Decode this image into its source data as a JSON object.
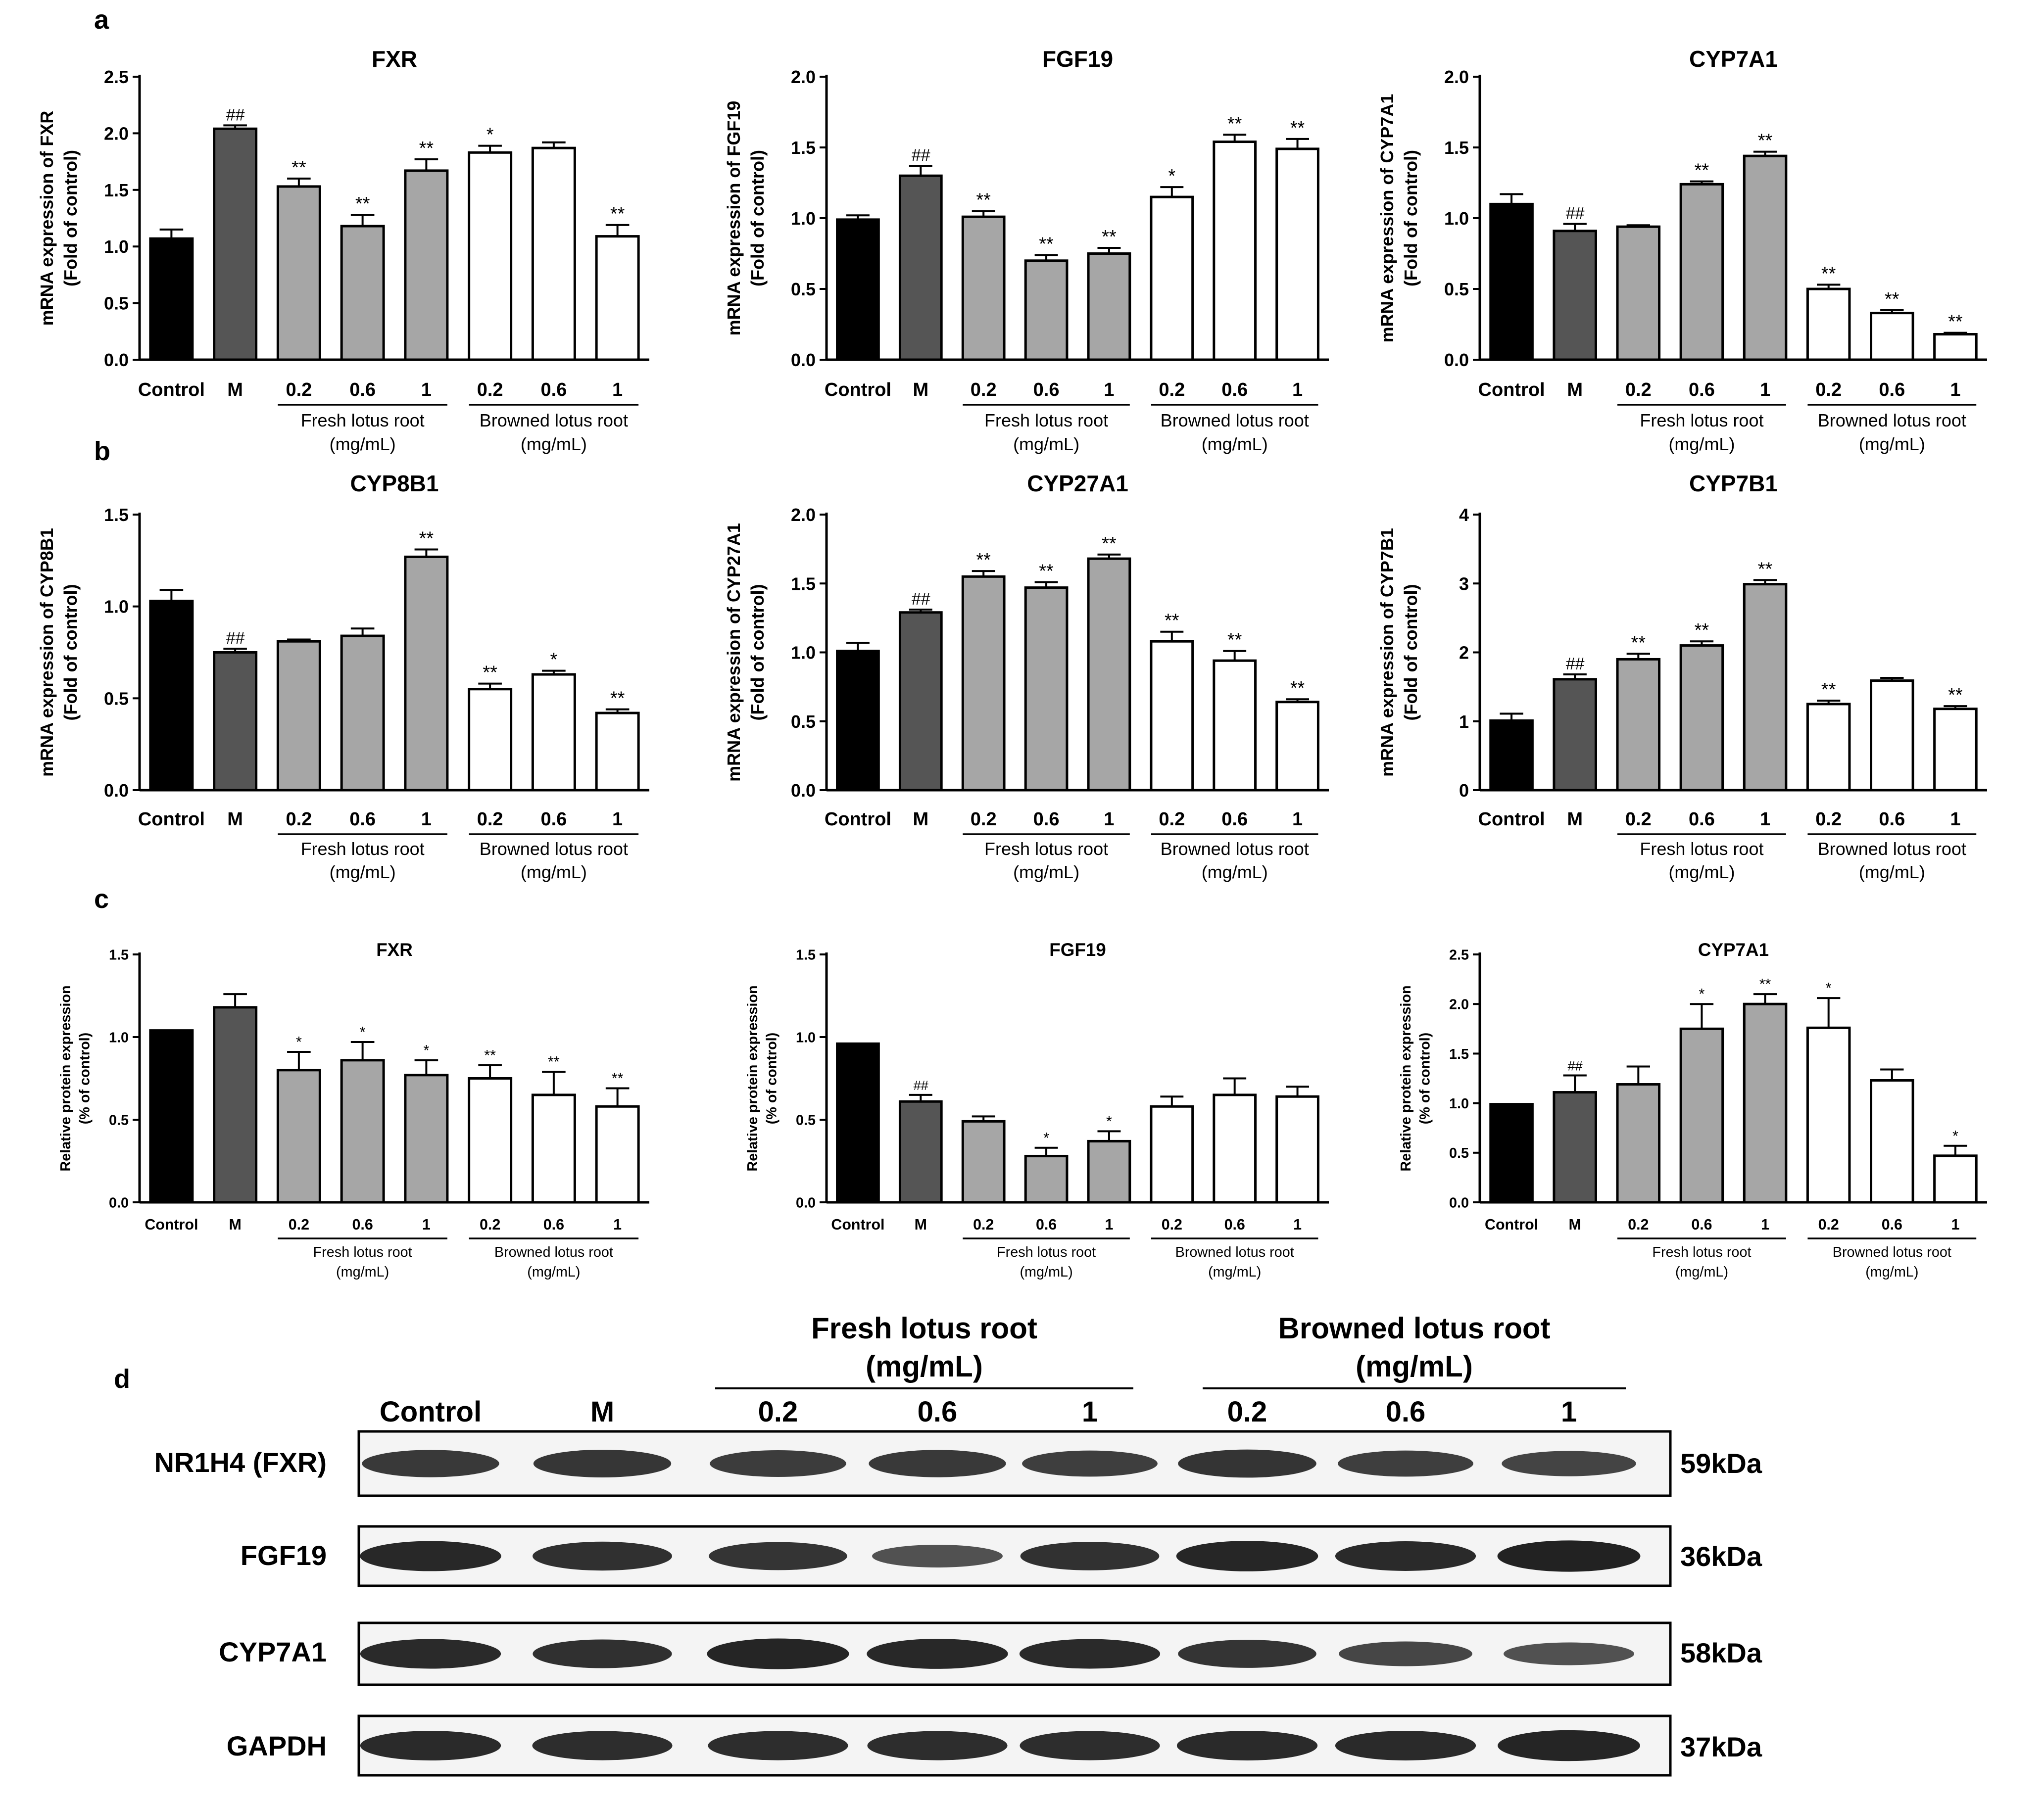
{
  "panel_labels": [
    "a",
    "b",
    "c",
    "d"
  ],
  "colors": {
    "control": "#000000",
    "model": "#555555",
    "fresh": "#a6a6a6",
    "browned": "#ffffff",
    "edge": "#000000"
  },
  "chart_data": [
    {
      "type": "bar",
      "panel": "a",
      "title": "FXR",
      "ylabel": [
        "mRNA expression of FXR",
        "(Fold of control)"
      ],
      "ylim": [
        0,
        2.5
      ],
      "yticks": [
        "0.0",
        "0.5",
        "1.0",
        "1.5",
        "2.0",
        "2.5"
      ],
      "categories": [
        "Control",
        "M",
        "0.2",
        "0.6",
        "1",
        "0.2",
        "0.6",
        "1"
      ],
      "values": [
        1.07,
        2.04,
        1.53,
        1.18,
        1.67,
        1.83,
        1.87,
        1.09
      ],
      "errors": [
        0.08,
        0.03,
        0.07,
        0.1,
        0.1,
        0.06,
        0.05,
        0.1
      ],
      "annotations": [
        "",
        "##",
        "**",
        "**",
        "**",
        "*",
        "",
        "**"
      ],
      "groups": [
        {
          "label": [
            "Fresh lotus root",
            "(mg/mL)"
          ]
        },
        {
          "label": [
            "Browned lotus root",
            "(mg/mL)"
          ]
        }
      ]
    },
    {
      "type": "bar",
      "panel": "a",
      "title": "FGF19",
      "ylabel": [
        "mRNA expression of FGF19",
        "(Fold of control)"
      ],
      "ylim": [
        0,
        2.0
      ],
      "yticks": [
        "0.0",
        "0.5",
        "1.0",
        "1.5",
        "2.0"
      ],
      "categories": [
        "Control",
        "M",
        "0.2",
        "0.6",
        "1",
        "0.2",
        "0.6",
        "1"
      ],
      "values": [
        0.99,
        1.3,
        1.01,
        0.7,
        0.75,
        1.15,
        1.54,
        1.49
      ],
      "errors": [
        0.03,
        0.07,
        0.04,
        0.04,
        0.04,
        0.07,
        0.05,
        0.07
      ],
      "annotations": [
        "",
        "##",
        "**",
        "**",
        "**",
        "*",
        "**",
        "**"
      ],
      "groups": [
        {
          "label": [
            "Fresh lotus root",
            "(mg/mL)"
          ]
        },
        {
          "label": [
            "Browned lotus root",
            "(mg/mL)"
          ]
        }
      ]
    },
    {
      "type": "bar",
      "panel": "a",
      "title": "CYP7A1",
      "ylabel": [
        "mRNA expression of CYP7A1",
        "(Fold of control)"
      ],
      "ylim": [
        0,
        2.0
      ],
      "yticks": [
        "0.0",
        "0.5",
        "1.0",
        "1.5",
        "2.0"
      ],
      "categories": [
        "Control",
        "M",
        "0.2",
        "0.6",
        "1",
        "0.2",
        "0.6",
        "1"
      ],
      "values": [
        1.1,
        0.91,
        0.94,
        1.24,
        1.44,
        0.5,
        0.33,
        0.18
      ],
      "errors": [
        0.07,
        0.05,
        0.01,
        0.02,
        0.03,
        0.03,
        0.02,
        0.01
      ],
      "annotations": [
        "",
        "##",
        "",
        "**",
        "**",
        "**",
        "**",
        "**"
      ],
      "groups": [
        {
          "label": [
            "Fresh lotus root",
            "(mg/mL)"
          ]
        },
        {
          "label": [
            "Browned lotus root",
            "(mg/mL)"
          ]
        }
      ]
    },
    {
      "type": "bar",
      "panel": "b",
      "title": "CYP8B1",
      "ylabel": [
        "mRNA expression of CYP8B1",
        "(Fold of control)"
      ],
      "ylim": [
        0,
        1.5
      ],
      "yticks": [
        "0.0",
        "0.5",
        "1.0",
        "1.5"
      ],
      "categories": [
        "Control",
        "M",
        "0.2",
        "0.6",
        "1",
        "0.2",
        "0.6",
        "1"
      ],
      "values": [
        1.03,
        0.75,
        0.81,
        0.84,
        1.27,
        0.55,
        0.63,
        0.42
      ],
      "errors": [
        0.06,
        0.02,
        0.01,
        0.04,
        0.04,
        0.03,
        0.02,
        0.02
      ],
      "annotations": [
        "",
        "##",
        "",
        "",
        "**",
        "**",
        "*",
        "**"
      ],
      "groups": [
        {
          "label": [
            "Fresh lotus root",
            "(mg/mL)"
          ]
        },
        {
          "label": [
            "Browned lotus root",
            "(mg/mL)"
          ]
        }
      ]
    },
    {
      "type": "bar",
      "panel": "b",
      "title": "CYP27A1",
      "ylabel": [
        "mRNA expression of CYP27A1",
        "(Fold of control)"
      ],
      "ylim": [
        0,
        2.0
      ],
      "yticks": [
        "0.0",
        "0.5",
        "1.0",
        "1.5",
        "2.0"
      ],
      "categories": [
        "Control",
        "M",
        "0.2",
        "0.6",
        "1",
        "0.2",
        "0.6",
        "1"
      ],
      "values": [
        1.01,
        1.29,
        1.55,
        1.47,
        1.68,
        1.08,
        0.94,
        0.64
      ],
      "errors": [
        0.06,
        0.02,
        0.04,
        0.04,
        0.03,
        0.07,
        0.07,
        0.02
      ],
      "annotations": [
        "",
        "##",
        "**",
        "**",
        "**",
        "**",
        "**",
        "**"
      ],
      "groups": [
        {
          "label": [
            "Fresh lotus root",
            "(mg/mL)"
          ]
        },
        {
          "label": [
            "Browned lotus root",
            "(mg/mL)"
          ]
        }
      ]
    },
    {
      "type": "bar",
      "panel": "b",
      "title": "CYP7B1",
      "ylabel": [
        "mRNA expression of CYP7B1",
        "(Fold of control)"
      ],
      "ylim": [
        0,
        4
      ],
      "yticks": [
        "0",
        "1",
        "2",
        "3",
        "4"
      ],
      "categories": [
        "Control",
        "M",
        "0.2",
        "0.6",
        "1",
        "0.2",
        "0.6",
        "1"
      ],
      "values": [
        1.01,
        1.61,
        1.9,
        2.1,
        2.99,
        1.25,
        1.59,
        1.18
      ],
      "errors": [
        0.1,
        0.07,
        0.08,
        0.06,
        0.06,
        0.05,
        0.04,
        0.04
      ],
      "annotations": [
        "",
        "##",
        "**",
        "**",
        "**",
        "**",
        "",
        "**"
      ],
      "groups": [
        {
          "label": [
            "Fresh lotus root",
            "(mg/mL)"
          ]
        },
        {
          "label": [
            "Browned lotus root",
            "(mg/mL)"
          ]
        }
      ]
    },
    {
      "type": "bar",
      "panel": "c",
      "title": "FXR",
      "ylabel": [
        "Relative protein expression",
        "(% of control)"
      ],
      "ylim": [
        0,
        1.5
      ],
      "yticks": [
        "0.0",
        "0.5",
        "1.0",
        "1.5"
      ],
      "categories": [
        "Control",
        "M",
        "0.2",
        "0.6",
        "1",
        "0.2",
        "0.6",
        "1"
      ],
      "values": [
        1.04,
        1.18,
        0.8,
        0.86,
        0.77,
        0.75,
        0.65,
        0.58
      ],
      "errors": [
        0.0,
        0.08,
        0.11,
        0.11,
        0.09,
        0.08,
        0.14,
        0.11
      ],
      "annotations": [
        "",
        "",
        "*",
        "*",
        "*",
        "**",
        "**",
        "**"
      ],
      "groups": [
        {
          "label": [
            "Fresh lotus root",
            "(mg/mL)"
          ]
        },
        {
          "label": [
            "Browned lotus root",
            "(mg/mL)"
          ]
        }
      ]
    },
    {
      "type": "bar",
      "panel": "c",
      "title": "FGF19",
      "ylabel": [
        "Relative protein expression",
        "(% of control)"
      ],
      "ylim": [
        0,
        1.5
      ],
      "yticks": [
        "0.0",
        "0.5",
        "1.0",
        "1.5"
      ],
      "categories": [
        "Control",
        "M",
        "0.2",
        "0.6",
        "1",
        "0.2",
        "0.6",
        "1"
      ],
      "values": [
        0.96,
        0.61,
        0.49,
        0.28,
        0.37,
        0.58,
        0.65,
        0.64
      ],
      "errors": [
        0.0,
        0.04,
        0.03,
        0.05,
        0.06,
        0.06,
        0.1,
        0.06
      ],
      "annotations": [
        "",
        "##",
        "",
        "*",
        "*",
        "",
        "",
        ""
      ],
      "groups": [
        {
          "label": [
            "Fresh lotus root",
            "(mg/mL)"
          ]
        },
        {
          "label": [
            "Browned lotus root",
            "(mg/mL)"
          ]
        }
      ]
    },
    {
      "type": "bar",
      "panel": "c",
      "title": "CYP7A1",
      "ylabel": [
        "Relative protein expression",
        "(% of control)"
      ],
      "ylim": [
        0,
        2.5
      ],
      "yticks": [
        "0.0",
        "0.5",
        "1.0",
        "1.5",
        "2.0",
        "2.5"
      ],
      "categories": [
        "Control",
        "M",
        "0.2",
        "0.6",
        "1",
        "0.2",
        "0.6",
        "1"
      ],
      "values": [
        0.99,
        1.11,
        1.19,
        1.75,
        2.0,
        1.76,
        1.23,
        0.47
      ],
      "errors": [
        0.0,
        0.17,
        0.18,
        0.25,
        0.1,
        0.3,
        0.11,
        0.1
      ],
      "annotations": [
        "",
        "##",
        "",
        "*",
        "**",
        "*",
        "",
        "*"
      ],
      "groups": [
        {
          "label": [
            "Fresh lotus root",
            "(mg/mL)"
          ]
        },
        {
          "label": [
            "Browned lotus root",
            "(mg/mL)"
          ]
        }
      ]
    },
    {
      "type": "table",
      "panel": "d",
      "name": "western-blot",
      "lanes": [
        "Control",
        "M",
        "0.2",
        "0.6",
        "1",
        "0.2",
        "0.6",
        "1"
      ],
      "groups": [
        {
          "label": [
            "Fresh lotus root",
            "(mg/mL)"
          ]
        },
        {
          "label": [
            "Browned lotus root",
            "(mg/mL)"
          ]
        }
      ],
      "rows": [
        {
          "protein": "NR1H4  (FXR)",
          "size": "59kDa",
          "intensity": [
            0.78,
            0.8,
            0.75,
            0.78,
            0.72,
            0.82,
            0.72,
            0.68
          ]
        },
        {
          "protein": "FGF19",
          "size": "36kDa",
          "intensity": [
            0.92,
            0.86,
            0.82,
            0.55,
            0.84,
            0.94,
            0.9,
            0.98
          ]
        },
        {
          "protein": "CYP7A1",
          "size": "58kDa",
          "intensity": [
            0.9,
            0.85,
            0.95,
            0.92,
            0.9,
            0.82,
            0.65,
            0.55
          ]
        },
        {
          "protein": "GAPDH",
          "size": "37kDa",
          "intensity": [
            0.9,
            0.88,
            0.88,
            0.88,
            0.88,
            0.9,
            0.9,
            0.96
          ]
        }
      ]
    }
  ]
}
